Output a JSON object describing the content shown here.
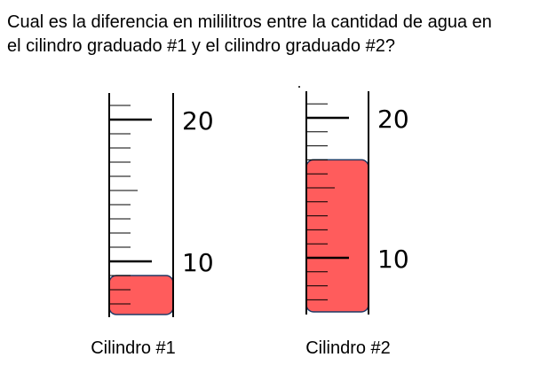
{
  "question": {
    "line1": "Cual es la diferencia en mililitros entre la cantidad de agua en",
    "line2": "el cilindro graduado #1 y el cilindro graduado #2?"
  },
  "cylinders": [
    {
      "caption": "Cilindro #1",
      "scale_labels": [
        20,
        10
      ],
      "level": 9
    },
    {
      "caption": "Cilindro #2",
      "scale_labels": [
        20,
        10
      ],
      "level": 17
    }
  ]
}
